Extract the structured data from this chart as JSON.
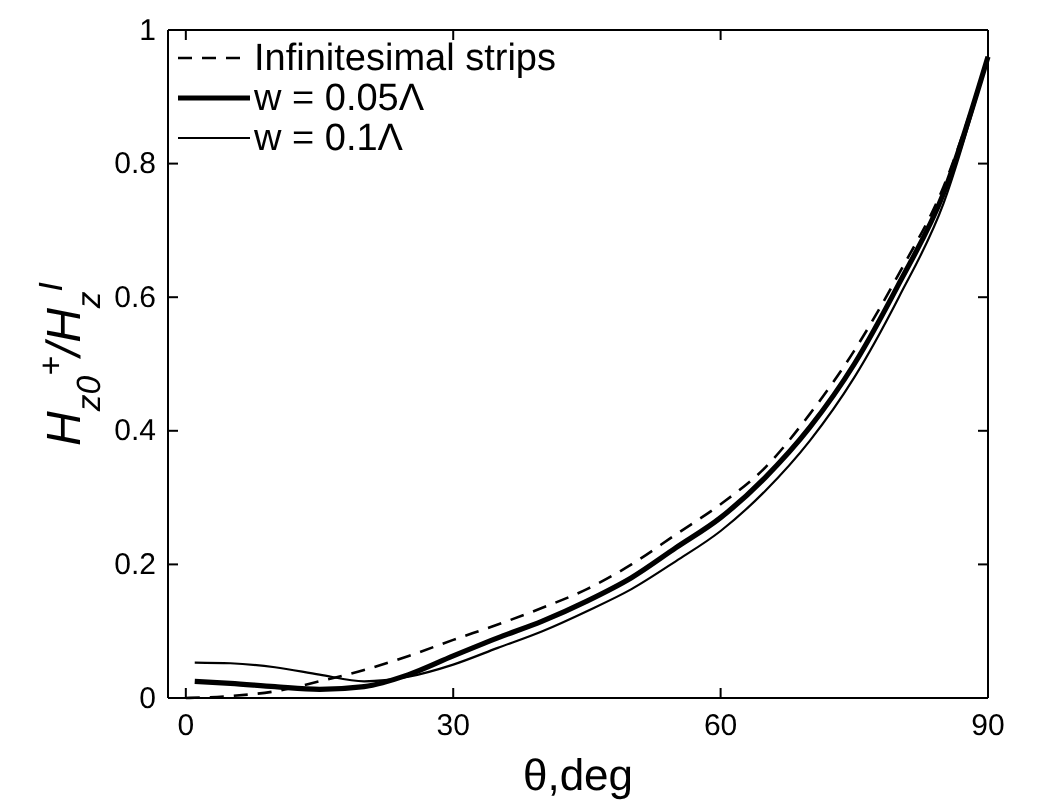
{
  "chart_data": {
    "type": "line",
    "xlabel": "θ,deg",
    "ylabel": "H$_{z0}$$^{+}$/H$_{z}$$^{I}$",
    "xlim": [
      -2,
      90
    ],
    "ylim": [
      0,
      1
    ],
    "xticks": [
      0,
      30,
      60,
      90
    ],
    "yticks": [
      0,
      0.2,
      0.4,
      0.6,
      0.8,
      1
    ],
    "legend": "top left",
    "grid": false,
    "series": [
      {
        "name": "Infinitesimal strips",
        "color": "#000000",
        "line_style": "dashed",
        "x": [
          0,
          5,
          10,
          15,
          20,
          25,
          30,
          35,
          40,
          45,
          50,
          55,
          60,
          65,
          70,
          75,
          80,
          85,
          90
        ],
        "values": [
          0,
          0.003,
          0.01,
          0.025,
          0.042,
          0.063,
          0.087,
          0.11,
          0.135,
          0.163,
          0.2,
          0.245,
          0.29,
          0.345,
          0.425,
          0.52,
          0.635,
          0.765,
          0.96
        ]
      },
      {
        "name": "w = 0.05Λ",
        "color": "#000000",
        "line_style": "solid",
        "x": [
          1,
          5,
          10,
          15,
          20,
          25,
          30,
          35,
          40,
          45,
          50,
          55,
          60,
          65,
          70,
          75,
          80,
          85,
          90
        ],
        "values": [
          0.025,
          0.022,
          0.017,
          0.013,
          0.017,
          0.035,
          0.063,
          0.09,
          0.115,
          0.145,
          0.18,
          0.225,
          0.27,
          0.33,
          0.405,
          0.5,
          0.62,
          0.755,
          0.96
        ]
      },
      {
        "name": "w = 0.1Λ",
        "color": "#000000",
        "line_style": "solid",
        "x": [
          1,
          5,
          10,
          15,
          20,
          25,
          30,
          35,
          40,
          45,
          50,
          55,
          60,
          65,
          70,
          75,
          80,
          85,
          90
        ],
        "values": [
          0.053,
          0.052,
          0.046,
          0.035,
          0.025,
          0.032,
          0.05,
          0.075,
          0.1,
          0.13,
          0.163,
          0.205,
          0.25,
          0.31,
          0.385,
          0.48,
          0.6,
          0.74,
          0.96
        ]
      }
    ]
  }
}
